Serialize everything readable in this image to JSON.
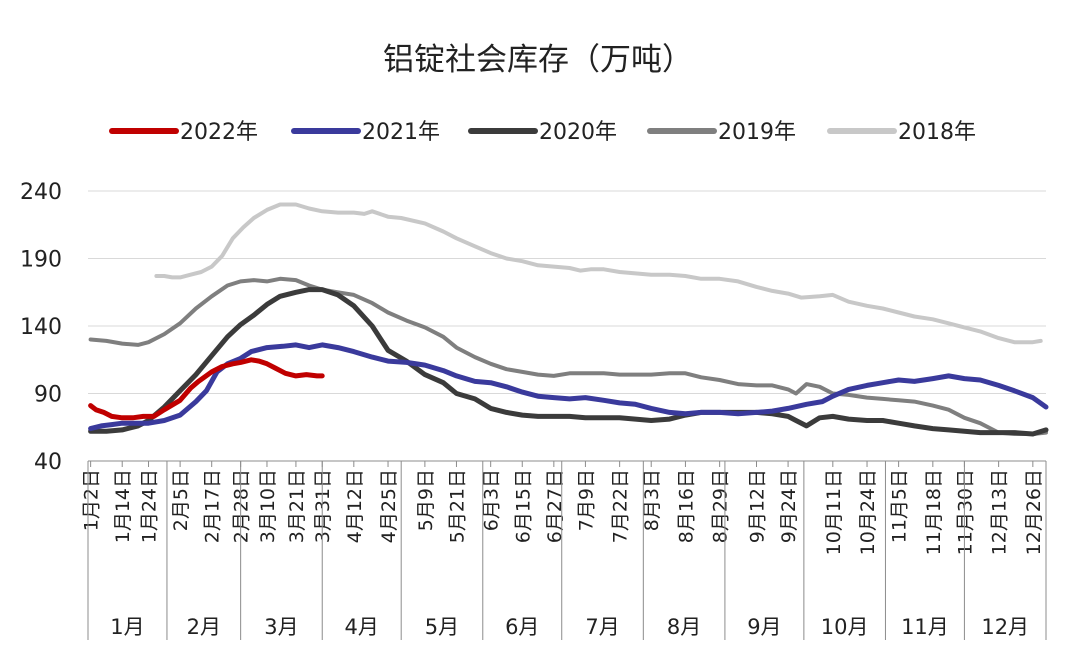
{
  "chart_data": {
    "type": "line",
    "title": "铝锭社会库存（万吨）",
    "ylim": [
      40,
      240
    ],
    "yticks": [
      40,
      90,
      140,
      190,
      240
    ],
    "xlim": [
      1,
      365
    ],
    "grid": "horizontal",
    "legend_position": "top",
    "x_tick_labels": [
      "1月2日",
      "1月14日",
      "1月24日",
      "2月5日",
      "2月17日",
      "2月28日",
      "3月10日",
      "3月21日",
      "3月31日",
      "4月12日",
      "4月25日",
      "5月9日",
      "5月21日",
      "6月3日",
      "6月15日",
      "6月27日",
      "7月9日",
      "7月22日",
      "8月3日",
      "8月16日",
      "8月29日",
      "9月12日",
      "9月24日",
      "10月11日",
      "10月24日",
      "11月5日",
      "11月18日",
      "11月30日",
      "12月13日",
      "12月26日"
    ],
    "x_tick_days": [
      2,
      14,
      24,
      36,
      48,
      59,
      69,
      80,
      90,
      102,
      115,
      129,
      141,
      154,
      166,
      178,
      190,
      203,
      215,
      228,
      241,
      255,
      267,
      284,
      297,
      309,
      322,
      334,
      347,
      360
    ],
    "months": [
      "1月",
      "2月",
      "3月",
      "4月",
      "5月",
      "6月",
      "7月",
      "8月",
      "9月",
      "10月",
      "11月",
      "12月"
    ],
    "month_end_days": [
      31,
      59,
      90,
      120,
      151,
      181,
      212,
      243,
      273,
      304,
      334,
      365
    ],
    "series": [
      {
        "name": "2022年",
        "color": "#c00000",
        "width": 5,
        "x": [
          2,
          4,
          7,
          10,
          14,
          18,
          22,
          26,
          30,
          36,
          40,
          43,
          48,
          52,
          56,
          59,
          63,
          66,
          69,
          72,
          76,
          80,
          84,
          88,
          90
        ],
        "y": [
          81,
          78,
          76,
          73,
          72,
          72,
          73,
          73,
          78,
          85,
          94,
          99,
          106,
          110,
          112,
          113,
          115,
          114,
          112,
          109,
          105,
          103,
          104,
          103,
          103
        ]
      },
      {
        "name": "2021年",
        "color": "#3a3a9c",
        "width": 5,
        "x": [
          2,
          6,
          10,
          14,
          18,
          24,
          30,
          36,
          42,
          46,
          50,
          54,
          59,
          63,
          69,
          75,
          80,
          85,
          90,
          96,
          102,
          109,
          115,
          122,
          129,
          136,
          141,
          148,
          154,
          160,
          166,
          172,
          178,
          184,
          190,
          197,
          203,
          209,
          215,
          222,
          228,
          234,
          241,
          248,
          255,
          261,
          267,
          274,
          280,
          284,
          290,
          297,
          303,
          309,
          315,
          322,
          328,
          334,
          340,
          347,
          353,
          360,
          365
        ],
        "y": [
          64,
          66,
          67,
          68,
          68,
          68,
          70,
          74,
          84,
          92,
          106,
          112,
          116,
          121,
          124,
          125,
          126,
          124,
          126,
          124,
          121,
          117,
          114,
          113,
          111,
          107,
          103,
          99,
          98,
          95,
          91,
          88,
          87,
          86,
          87,
          85,
          83,
          82,
          79,
          76,
          75,
          76,
          76,
          75,
          76,
          77,
          79,
          82,
          84,
          88,
          93,
          96,
          98,
          100,
          99,
          101,
          103,
          101,
          100,
          96,
          92,
          87,
          80
        ]
      },
      {
        "name": "2020年",
        "color": "#3b3b3b",
        "width": 5,
        "x": [
          2,
          8,
          14,
          20,
          24,
          30,
          36,
          42,
          48,
          54,
          59,
          64,
          69,
          74,
          80,
          85,
          90,
          96,
          102,
          109,
          115,
          122,
          129,
          136,
          141,
          148,
          154,
          160,
          166,
          172,
          178,
          184,
          190,
          197,
          203,
          209,
          215,
          222,
          228,
          234,
          241,
          248,
          255,
          261,
          267,
          270,
          274,
          279,
          284,
          290,
          297,
          303,
          309,
          315,
          322,
          328,
          334,
          340,
          347,
          353,
          360,
          365
        ],
        "y": [
          62,
          62,
          63,
          66,
          70,
          80,
          92,
          104,
          118,
          132,
          141,
          148,
          156,
          162,
          165,
          167,
          167,
          163,
          155,
          140,
          122,
          114,
          104,
          98,
          90,
          86,
          79,
          76,
          74,
          73,
          73,
          73,
          72,
          72,
          72,
          71,
          70,
          71,
          74,
          76,
          76,
          76,
          76,
          75,
          73,
          70,
          66,
          72,
          73,
          71,
          70,
          70,
          68,
          66,
          64,
          63,
          62,
          61,
          61,
          61,
          60,
          63
        ]
      },
      {
        "name": "2019年",
        "color": "#7f7f7f",
        "width": 4,
        "x": [
          2,
          8,
          14,
          20,
          24,
          30,
          36,
          42,
          48,
          54,
          59,
          64,
          69,
          74,
          80,
          85,
          90,
          96,
          102,
          109,
          115,
          122,
          129,
          136,
          141,
          148,
          154,
          160,
          166,
          172,
          178,
          184,
          190,
          197,
          203,
          209,
          215,
          222,
          228,
          234,
          241,
          248,
          255,
          261,
          267,
          270,
          274,
          279,
          284,
          290,
          297,
          303,
          309,
          315,
          322,
          328,
          334,
          340,
          347,
          353,
          360,
          365
        ],
        "y": [
          130,
          129,
          127,
          126,
          128,
          134,
          142,
          153,
          162,
          170,
          173,
          174,
          173,
          175,
          174,
          170,
          167,
          165,
          163,
          157,
          150,
          144,
          139,
          132,
          124,
          117,
          112,
          108,
          106,
          104,
          103,
          105,
          105,
          105,
          104,
          104,
          104,
          105,
          105,
          102,
          100,
          97,
          96,
          96,
          93,
          90,
          97,
          95,
          90,
          89,
          87,
          86,
          85,
          84,
          81,
          78,
          72,
          68,
          61,
          60,
          60,
          61
        ]
      },
      {
        "name": "2018年",
        "color": "#c8c8c8",
        "width": 4,
        "x": [
          27,
          30,
          33,
          36,
          40,
          44,
          48,
          52,
          56,
          60,
          64,
          69,
          74,
          80,
          85,
          90,
          96,
          102,
          106,
          109,
          115,
          120,
          129,
          136,
          141,
          148,
          154,
          160,
          166,
          172,
          178,
          184,
          188,
          192,
          197,
          203,
          209,
          215,
          222,
          228,
          234,
          241,
          248,
          255,
          261,
          267,
          272,
          279,
          284,
          290,
          297,
          303,
          309,
          315,
          322,
          328,
          334,
          340,
          347,
          353,
          360,
          363
        ],
        "y": [
          177,
          177,
          176,
          176,
          178,
          180,
          184,
          192,
          205,
          213,
          220,
          226,
          230,
          230,
          227,
          225,
          224,
          224,
          223,
          225,
          221,
          220,
          216,
          210,
          205,
          199,
          194,
          190,
          188,
          185,
          184,
          183,
          181,
          182,
          182,
          180,
          179,
          178,
          178,
          177,
          175,
          175,
          173,
          169,
          166,
          164,
          161,
          162,
          163,
          158,
          155,
          153,
          150,
          147,
          145,
          142,
          139,
          136,
          131,
          128,
          128,
          129
        ]
      }
    ]
  }
}
